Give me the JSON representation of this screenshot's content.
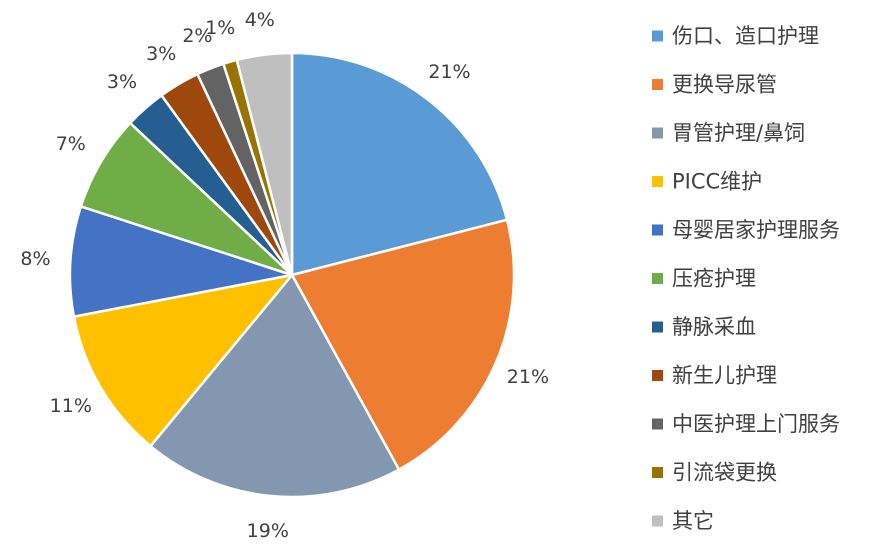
{
  "chart_data": {
    "type": "pie",
    "title": "",
    "start_angle_deg": 0,
    "direction": "clockwise",
    "legend_position": "right",
    "slices": [
      {
        "label": "伤口、造口护理",
        "value": 21,
        "display": "21%",
        "color": "#5B9BD5"
      },
      {
        "label": "更换导尿管",
        "value": 21,
        "display": "21%",
        "color": "#ED7D31"
      },
      {
        "label": "胃管护理/鼻饲",
        "value": 19,
        "display": "19%",
        "color": "#8497B0"
      },
      {
        "label": "PICC维护",
        "value": 11,
        "display": "11%",
        "color": "#FFC000"
      },
      {
        "label": "母婴居家护理服务",
        "value": 8,
        "display": "8%",
        "color": "#4472C4"
      },
      {
        "label": "压疮护理",
        "value": 7,
        "display": "7%",
        "color": "#70AD47"
      },
      {
        "label": "静脉采血",
        "value": 3,
        "display": "3%",
        "color": "#255E91"
      },
      {
        "label": "新生儿护理",
        "value": 3,
        "display": "3%",
        "color": "#9E480E"
      },
      {
        "label": "中医护理上门服务",
        "value": 2,
        "display": "2%",
        "color": "#636363"
      },
      {
        "label": "引流袋更换",
        "value": 1,
        "display": "1%",
        "color": "#997300"
      },
      {
        "label": "其它",
        "value": 4,
        "display": "4%",
        "color": "#BFBFBF"
      }
    ]
  }
}
